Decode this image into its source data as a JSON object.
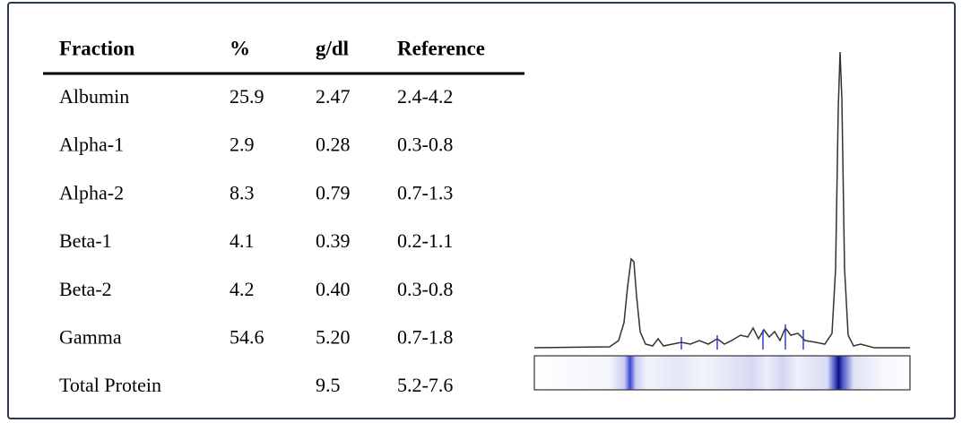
{
  "table": {
    "header": [
      "Fraction",
      "%",
      "g/dl",
      "Reference"
    ],
    "rows": [
      {
        "fraction": "Albumin",
        "percent": "25.9",
        "gdl": "2.47",
        "reference": "2.4-4.2"
      },
      {
        "fraction": "Alpha-1",
        "percent": "2.9",
        "gdl": "0.28",
        "reference": "0.3-0.8"
      },
      {
        "fraction": "Alpha-2",
        "percent": "8.3",
        "gdl": "0.79",
        "reference": "0.7-1.3"
      },
      {
        "fraction": "Beta-1",
        "percent": "4.1",
        "gdl": "0.39",
        "reference": "0.2-1.1"
      },
      {
        "fraction": "Beta-2",
        "percent": "4.2",
        "gdl": "0.40",
        "reference": "0.3-0.8"
      },
      {
        "fraction": "Gamma",
        "percent": "54.6",
        "gdl": "5.20",
        "reference": "0.7-1.8"
      },
      {
        "fraction": "Total Protein",
        "gdl": "9.5",
        "reference": "5.2-7.6"
      }
    ]
  }
}
